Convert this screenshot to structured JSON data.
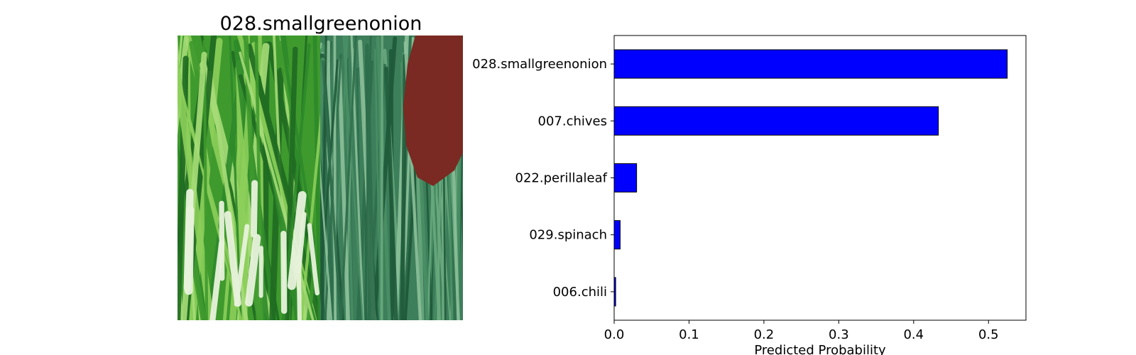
{
  "image_panel": {
    "title": "028.smallgreenonion",
    "palette": {
      "light_green": "#8ccf5a",
      "mid_green": "#3f9a2e",
      "dark_green": "#1f6b22",
      "teal_green": "#3d7f5a",
      "pale_stem": "#e8f3dc",
      "meat": "#7a2a22"
    }
  },
  "chart_data": {
    "type": "bar",
    "orientation": "horizontal",
    "categories": [
      "028.smallgreenonion",
      "007.chives",
      "022.perillaleaf",
      "029.spinach",
      "006.chili"
    ],
    "values": [
      0.525,
      0.433,
      0.03,
      0.008,
      0.002
    ],
    "title": "",
    "xlabel": "Predicted Probability",
    "ylabel": "",
    "xlim": [
      0,
      0.55
    ],
    "xticks": [
      0.0,
      0.1,
      0.2,
      0.3,
      0.4,
      0.5
    ],
    "xtick_labels": [
      "0.0",
      "0.1",
      "0.2",
      "0.3",
      "0.4",
      "0.5"
    ],
    "bar_color": "#0000ff",
    "edge_color": "#000000",
    "grid": false,
    "legend": "none"
  }
}
